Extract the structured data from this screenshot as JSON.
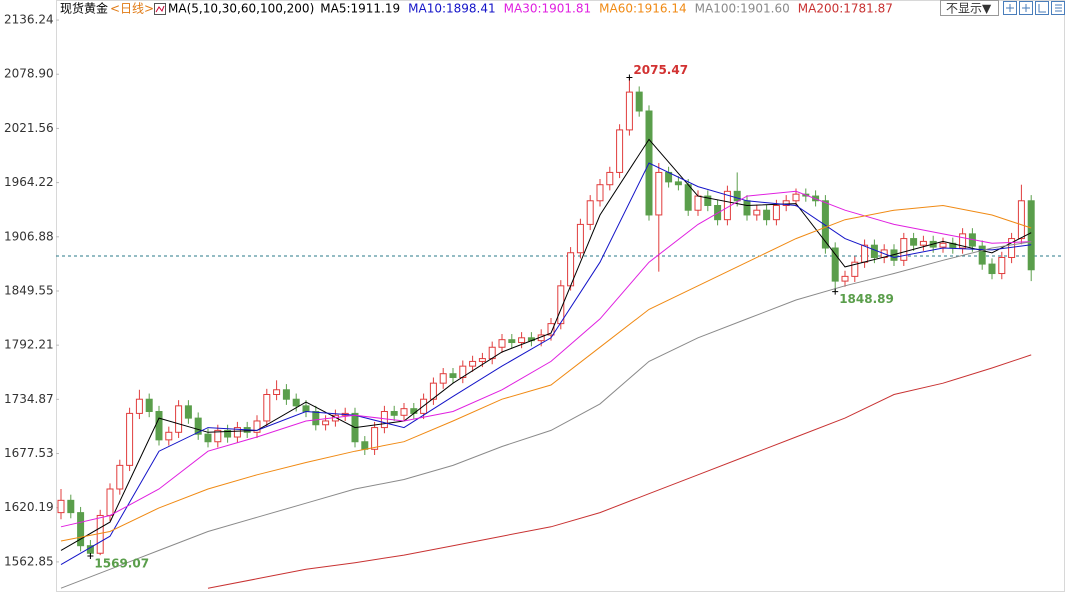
{
  "chart_data": {
    "type": "candlestick",
    "title": "现货黄金",
    "period": "<日线>",
    "indicator": "MA(5,10,30,60,100,200)",
    "button": "不显示▼",
    "ylim": [
      1531,
      2149
    ],
    "yticks": [
      1562.85,
      1620.19,
      1677.53,
      1734.87,
      1792.21,
      1849.55,
      1906.88,
      1964.22,
      2021.56,
      {
        "value": 2078.9,
        "label": "2078.90"
      },
      2136.24
    ],
    "grid": false,
    "up_color": "#e03c3c",
    "down_color": "#5a9e4b",
    "open": [
      1615,
      1628,
      1615,
      1580,
      1572,
      1612,
      1640,
      1665,
      1720,
      1735,
      1722,
      1692,
      1700,
      1728,
      1715,
      1698,
      1690,
      1702,
      1695,
      1705,
      1700,
      1712,
      1740,
      1745,
      1735,
      1728,
      1722,
      1708,
      1712,
      1718,
      1720,
      1690,
      1682,
      1705,
      1722,
      1718,
      1725,
      1720,
      1735,
      1752,
      1762,
      1758,
      1770,
      1775,
      1778,
      1790,
      1798,
      1795,
      1800,
      1797,
      1803,
      1815,
      1855,
      1890,
      1920,
      1945,
      1962,
      1975,
      2020,
      2060,
      2040,
      1930,
      1975,
      1965,
      1962,
      1935,
      1950,
      1940,
      1925,
      1955,
      1945,
      1930,
      1935,
      1925,
      1940,
      1945,
      1952,
      1950,
      1945,
      1895,
      1860,
      1865,
      1880,
      1898,
      1885,
      1893,
      1882,
      1905,
      1898,
      1902,
      1896,
      1900,
      1895,
      1910,
      1897,
      1878,
      1868,
      1885,
      1905,
      1945
    ],
    "high": [
      1640,
      1634,
      1621,
      1586,
      1618,
      1646,
      1671,
      1726,
      1745,
      1741,
      1728,
      1706,
      1734,
      1734,
      1721,
      1704,
      1708,
      1708,
      1711,
      1711,
      1718,
      1746,
      1755,
      1751,
      1741,
      1734,
      1728,
      1718,
      1724,
      1726,
      1726,
      1696,
      1711,
      1728,
      1728,
      1731,
      1731,
      1741,
      1758,
      1768,
      1768,
      1776,
      1781,
      1784,
      1796,
      1804,
      1804,
      1806,
      1806,
      1809,
      1821,
      1861,
      1896,
      1926,
      1951,
      1968,
      1981,
      2026,
      2075.47,
      2066,
      2046,
      1985,
      1981,
      1971,
      1968,
      1956,
      1956,
      1946,
      1961,
      1975,
      1951,
      1941,
      1941,
      1946,
      1951,
      1958,
      1958,
      1956,
      1951,
      1901,
      1871,
      1886,
      1904,
      1904,
      1899,
      1899,
      1911,
      1911,
      1908,
      1908,
      1906,
      1906,
      1916,
      1916,
      1903,
      1884,
      1891,
      1911,
      1962,
      1951
    ],
    "low": [
      1608,
      1609,
      1574,
      1569.07,
      1570,
      1606,
      1634,
      1659,
      1714,
      1716,
      1686,
      1686,
      1694,
      1709,
      1692,
      1684,
      1684,
      1689,
      1689,
      1694,
      1694,
      1706,
      1734,
      1729,
      1722,
      1716,
      1702,
      1702,
      1706,
      1712,
      1684,
      1676,
      1676,
      1699,
      1712,
      1712,
      1714,
      1714,
      1729,
      1746,
      1752,
      1752,
      1764,
      1769,
      1772,
      1784,
      1789,
      1789,
      1791,
      1791,
      1797,
      1809,
      1850,
      1884,
      1914,
      1939,
      1956,
      1969,
      2014,
      2034,
      1924,
      1870,
      1959,
      1956,
      1929,
      1929,
      1934,
      1919,
      1919,
      1939,
      1924,
      1924,
      1919,
      1919,
      1934,
      1939,
      1944,
      1939,
      1889,
      1848.89,
      1854,
      1859,
      1874,
      1879,
      1879,
      1876,
      1876,
      1892,
      1892,
      1890,
      1890,
      1889,
      1889,
      1891,
      1872,
      1862,
      1862,
      1879,
      1899,
      1860
    ],
    "close": [
      1628,
      1615,
      1580,
      1572,
      1612,
      1640,
      1665,
      1720,
      1735,
      1722,
      1692,
      1700,
      1728,
      1715,
      1698,
      1690,
      1702,
      1695,
      1705,
      1700,
      1712,
      1740,
      1745,
      1735,
      1728,
      1722,
      1708,
      1712,
      1718,
      1720,
      1690,
      1682,
      1705,
      1722,
      1718,
      1725,
      1720,
      1735,
      1752,
      1762,
      1758,
      1770,
      1775,
      1778,
      1790,
      1798,
      1795,
      1800,
      1797,
      1803,
      1815,
      1855,
      1890,
      1920,
      1945,
      1962,
      1975,
      2020,
      2060,
      2040,
      1930,
      1975,
      1965,
      1962,
      1935,
      1950,
      1940,
      1925,
      1955,
      1945,
      1930,
      1935,
      1925,
      1940,
      1945,
      1952,
      1950,
      1945,
      1895,
      1860,
      1865,
      1880,
      1898,
      1885,
      1893,
      1882,
      1905,
      1898,
      1902,
      1896,
      1900,
      1895,
      1910,
      1897,
      1878,
      1868,
      1885,
      1905,
      1945,
      1872
    ],
    "ma_x": [
      0,
      5,
      10,
      15,
      20,
      25,
      30,
      35,
      40,
      45,
      50,
      55,
      60,
      65,
      70,
      75,
      80,
      85,
      90,
      95,
      99
    ],
    "series": [
      {
        "name": "MA5:1911.19",
        "color": "#000000",
        "values": [
          1575,
          1605,
          1715,
          1700,
          1702,
          1732,
          1705,
          1712,
          1752,
          1785,
          1805,
          1930,
          2010,
          1950,
          1940,
          1942,
          1875,
          1888,
          1902,
          1890,
          1911.19
        ]
      },
      {
        "name": "MA10:1898.41",
        "color": "#1414c8",
        "values": [
          1560,
          1590,
          1680,
          1705,
          1702,
          1722,
          1718,
          1705,
          1738,
          1770,
          1800,
          1880,
          1985,
          1960,
          1945,
          1940,
          1905,
          1885,
          1895,
          1893,
          1898.41
        ]
      },
      {
        "name": "MA30:1901.81",
        "color": "#e020e0",
        "values": [
          1600,
          1612,
          1640,
          1680,
          1695,
          1712,
          1718,
          1712,
          1722,
          1745,
          1775,
          1820,
          1880,
          1920,
          1950,
          1955,
          1935,
          1920,
          1910,
          1900,
          1901.81
        ]
      },
      {
        "name": "MA60:1916.14",
        "color": "#f08a14",
        "values": [
          1585,
          1595,
          1620,
          1640,
          1655,
          1668,
          1680,
          1690,
          1712,
          1735,
          1750,
          1790,
          1830,
          1855,
          1880,
          1905,
          1925,
          1935,
          1940,
          1930,
          1916.14
        ]
      },
      {
        "name": "MA100:1901.60",
        "color": "#8a8a8a",
        "values": [
          1535,
          1555,
          1575,
          1595,
          1610,
          1625,
          1640,
          1650,
          1665,
          1685,
          1702,
          1730,
          1775,
          1800,
          1820,
          1840,
          1855,
          1868,
          1882,
          1895,
          1901.6
        ]
      },
      {
        "name": "MA200:1781.87",
        "color": "#c83232",
        "values": [
          null,
          null,
          null,
          1535,
          1545,
          1555,
          1562,
          1570,
          1580,
          1590,
          1600,
          1615,
          1635,
          1655,
          1675,
          1695,
          1715,
          1740,
          1752,
          1768,
          1781.87
        ]
      }
    ],
    "price_line": 1886.5,
    "annotations": [
      {
        "text": "2075.47",
        "x": 58,
        "y": 2075.47,
        "color": "#d23232"
      },
      {
        "text": "1848.89",
        "x": 79,
        "y": 1848.89,
        "color": "#5a9e4b"
      },
      {
        "text": "1569.07",
        "x": 3,
        "y": 1569.07,
        "color": "#5a9e4b"
      }
    ]
  }
}
